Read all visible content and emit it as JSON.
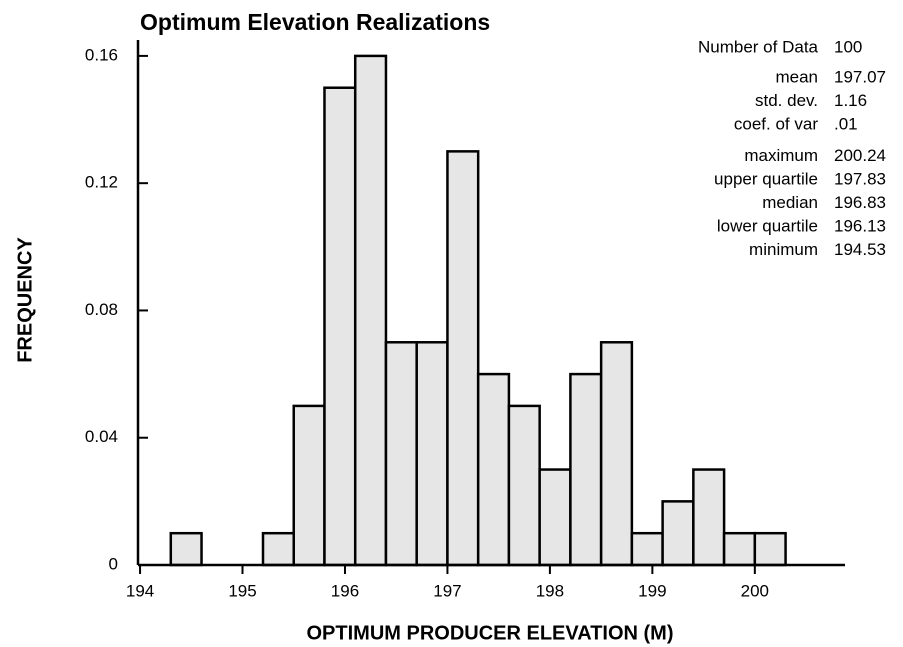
{
  "chart_data": {
    "type": "histogram",
    "title": "Optimum Elevation Realizations",
    "x_label": "OPTIMUM PRODUCER ELEVATION (M)",
    "y_label": "FREQUENCY",
    "bins": [
      194.3,
      194.6,
      194.9,
      195.2,
      195.5,
      195.8,
      196.1,
      196.4,
      196.7,
      197.0,
      197.3,
      197.6,
      197.9,
      198.2,
      198.5,
      198.8,
      199.1,
      199.4,
      199.7,
      200.0,
      200.3
    ],
    "values": [
      0.01,
      0,
      0,
      0.01,
      0.05,
      0.15,
      0.16,
      0.07,
      0.07,
      0.13,
      0.06,
      0.05,
      0.03,
      0.06,
      0.07,
      0.01,
      0.02,
      0.03,
      0.01,
      0.01
    ],
    "color": "#e6e6e6",
    "xlim": [
      193.98,
      200.88
    ],
    "xticks": [
      194,
      195,
      196,
      197,
      198,
      199,
      200
    ],
    "ylim": [
      0,
      0.165
    ],
    "yticks": [
      0,
      0.04,
      0.08,
      0.12,
      0.16
    ],
    "stats": [
      [
        {
          "label": "Number of Data",
          "value": "100"
        },
        {
          "label": "mean",
          "value": "197.07"
        },
        {
          "label": "std. dev.",
          "value": "1.16"
        },
        {
          "label": "coef. of var",
          "value": ".01"
        }
      ],
      [
        {
          "label": "maximum",
          "value": "200.24"
        },
        {
          "label": "upper quartile",
          "value": "197.83"
        },
        {
          "label": "median",
          "value": "196.83"
        },
        {
          "label": "lower quartile",
          "value": "196.13"
        },
        {
          "label": "minimum",
          "value": "194.53"
        }
      ]
    ]
  }
}
